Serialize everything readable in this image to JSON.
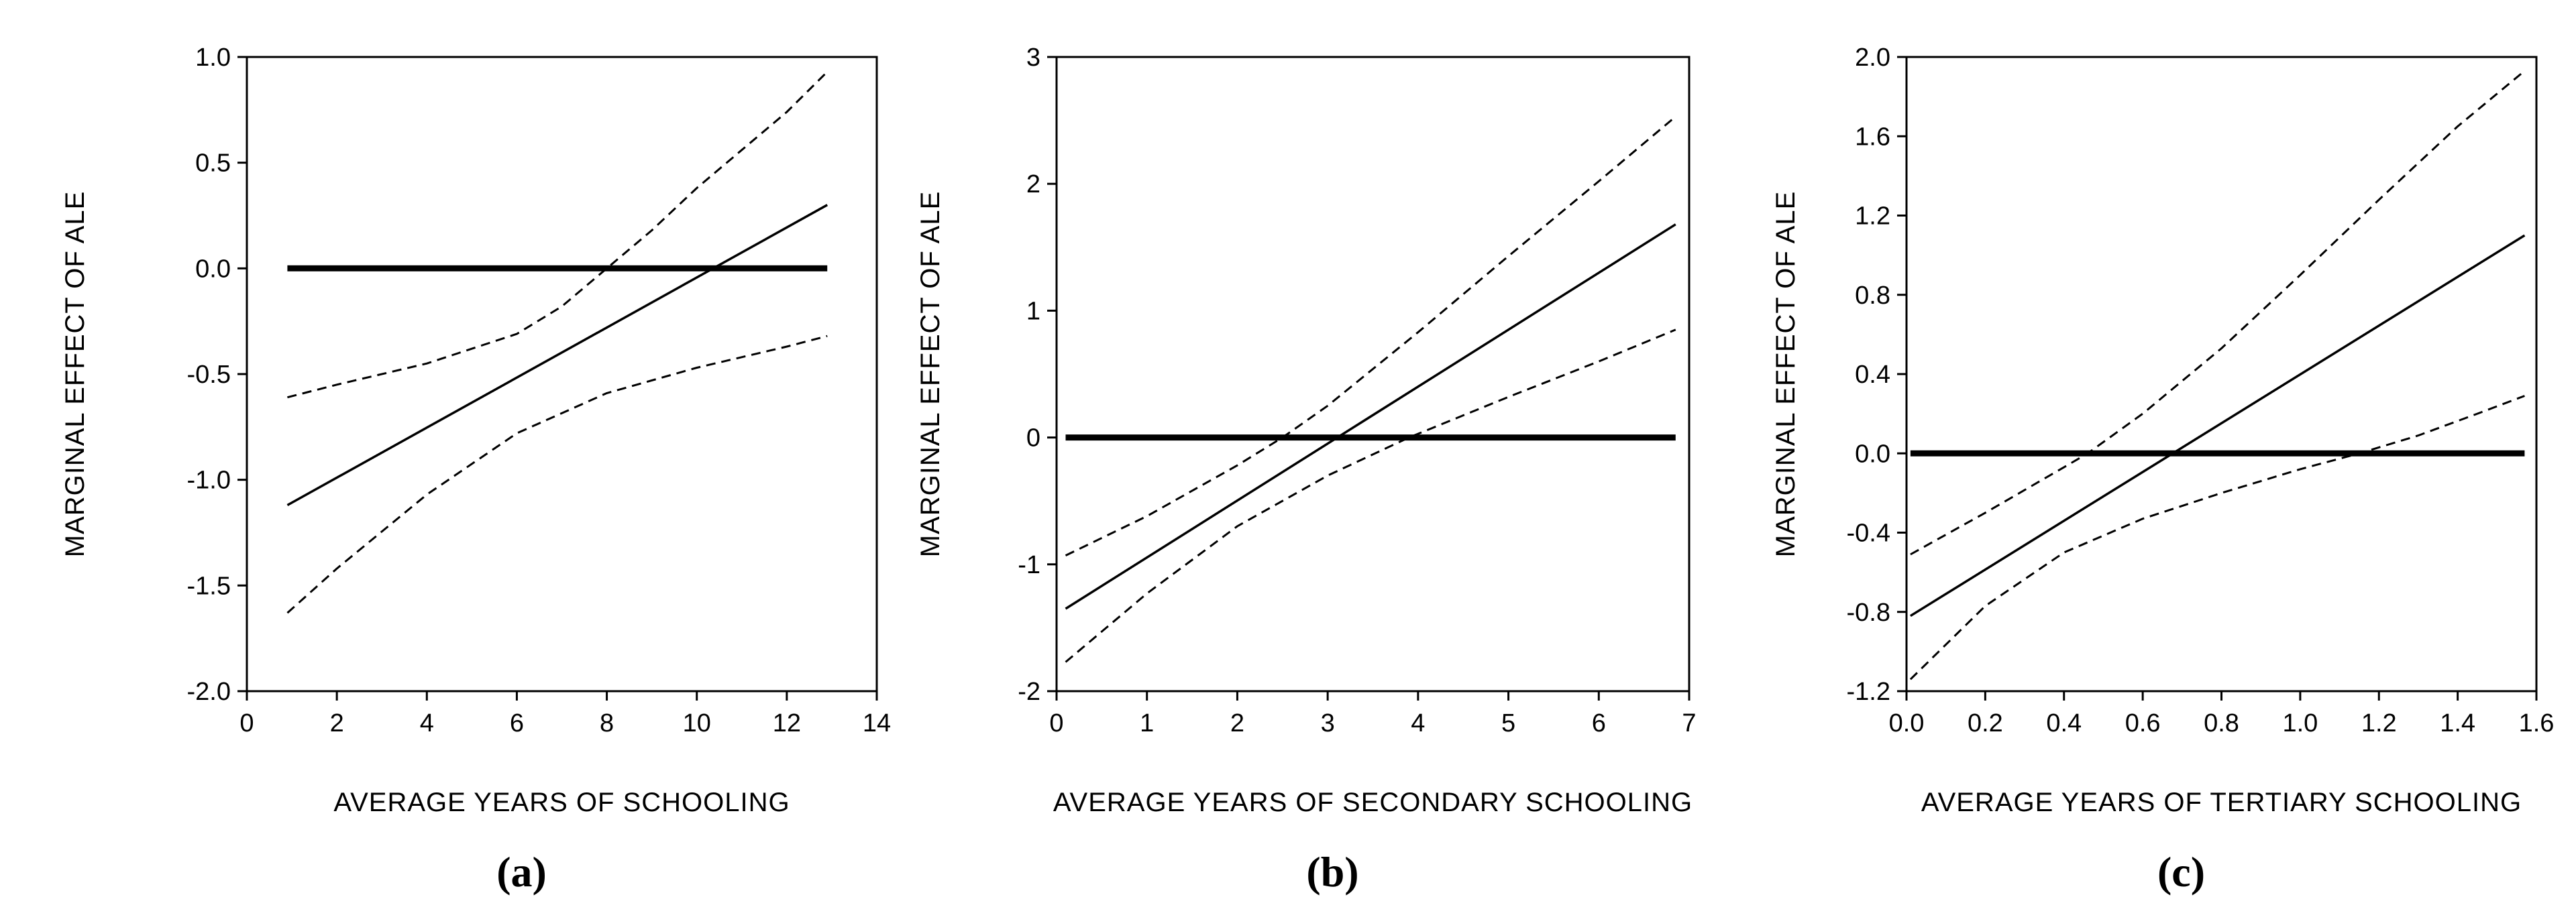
{
  "chart_data": [
    {
      "type": "line",
      "panel_label": "(a)",
      "xlabel": "AVERAGE YEARS OF SCHOOLING",
      "ylabel": "MARGINAL EFFECT OF ALE",
      "xlim": [
        0,
        14
      ],
      "ylim": [
        -2.0,
        1.0
      ],
      "xticks": [
        0,
        2,
        4,
        6,
        8,
        10,
        12,
        14
      ],
      "xtick_labels": [
        "0",
        "2",
        "4",
        "6",
        "8",
        "10",
        "12",
        "14"
      ],
      "yticks": [
        1.0,
        0.5,
        0.0,
        -0.5,
        -1.0,
        -1.5,
        -2.0
      ],
      "ytick_labels": [
        "1.0",
        "0.5",
        "0.0",
        "-0.5",
        "-1.0",
        "-1.5",
        "-2.0"
      ],
      "grid": false,
      "series": [
        {
          "name": "marginal effect",
          "style": "solid",
          "x": [
            0.9,
            12.9
          ],
          "y": [
            -1.12,
            0.3
          ]
        },
        {
          "name": "upper bound",
          "style": "dashed",
          "x": [
            0.9,
            2,
            4,
            6,
            7,
            8,
            9,
            10,
            11,
            12,
            12.9
          ],
          "y": [
            -0.61,
            -0.55,
            -0.45,
            -0.31,
            -0.18,
            0.0,
            0.18,
            0.38,
            0.56,
            0.74,
            0.93
          ]
        },
        {
          "name": "lower bound",
          "style": "dashed",
          "x": [
            0.9,
            2,
            4,
            6,
            8,
            10,
            12,
            12.9
          ],
          "y": [
            -1.63,
            -1.42,
            -1.07,
            -0.78,
            -0.59,
            -0.47,
            -0.37,
            -0.32
          ]
        },
        {
          "name": "zero line",
          "style": "bold",
          "x": [
            0.9,
            12.9
          ],
          "y": [
            0.0,
            0.0
          ]
        }
      ]
    },
    {
      "type": "line",
      "panel_label": "(b)",
      "xlabel": "AVERAGE YEARS OF SECONDARY SCHOOLING",
      "ylabel": "MARGINAL EFFECT OF ALE",
      "xlim": [
        0,
        7
      ],
      "ylim": [
        -2,
        3
      ],
      "xticks": [
        0,
        1,
        2,
        3,
        4,
        5,
        6,
        7
      ],
      "xtick_labels": [
        "0",
        "1",
        "2",
        "3",
        "4",
        "5",
        "6",
        "7"
      ],
      "yticks": [
        3,
        2,
        1,
        0,
        -1,
        -2
      ],
      "ytick_labels": [
        "3",
        "2",
        "1",
        "0",
        "-1",
        "-2"
      ],
      "grid": false,
      "series": [
        {
          "name": "marginal effect",
          "style": "solid",
          "x": [
            0.1,
            6.85
          ],
          "y": [
            -1.35,
            1.68
          ]
        },
        {
          "name": "upper bound",
          "style": "dashed",
          "x": [
            0.1,
            1,
            2,
            2.5,
            3,
            4,
            5,
            6,
            6.85
          ],
          "y": [
            -0.93,
            -0.62,
            -0.22,
            0.0,
            0.25,
            0.83,
            1.43,
            2.02,
            2.53
          ]
        },
        {
          "name": "lower bound",
          "style": "dashed",
          "x": [
            0.1,
            1,
            2,
            3,
            3.9,
            5,
            6,
            6.85
          ],
          "y": [
            -1.77,
            -1.23,
            -0.7,
            -0.3,
            0.0,
            0.32,
            0.6,
            0.85
          ]
        },
        {
          "name": "zero line",
          "style": "bold",
          "x": [
            0.1,
            6.85
          ],
          "y": [
            0.0,
            0.0
          ]
        }
      ]
    },
    {
      "type": "line",
      "panel_label": "(c)",
      "xlabel": "AVERAGE YEARS OF TERTIARY SCHOOLING",
      "ylabel": "MARGINAL EFFECT OF ALE",
      "xlim": [
        0.0,
        1.6
      ],
      "ylim": [
        -1.2,
        2.0
      ],
      "xticks": [
        0.0,
        0.2,
        0.4,
        0.6,
        0.8,
        1.0,
        1.2,
        1.4,
        1.6
      ],
      "xtick_labels": [
        "0.0",
        "0.2",
        "0.4",
        "0.6",
        "0.8",
        "1.0",
        "1.2",
        "1.4",
        "1.6"
      ],
      "yticks": [
        2.0,
        1.6,
        1.2,
        0.8,
        0.4,
        0.0,
        -0.4,
        -0.8,
        -1.2
      ],
      "ytick_labels": [
        "2.0",
        "1.6",
        "1.2",
        "0.8",
        "0.4",
        "0.0",
        "-0.4",
        "-0.8",
        "-1.2"
      ],
      "grid": false,
      "series": [
        {
          "name": "marginal effect",
          "style": "solid",
          "x": [
            0.01,
            1.57
          ],
          "y": [
            -0.82,
            1.1
          ]
        },
        {
          "name": "upper bound",
          "style": "dashed",
          "x": [
            0.01,
            0.2,
            0.4,
            0.46,
            0.6,
            0.8,
            1.0,
            1.2,
            1.4,
            1.57
          ],
          "y": [
            -0.51,
            -0.3,
            -0.07,
            0.0,
            0.2,
            0.53,
            0.9,
            1.28,
            1.65,
            1.93
          ]
        },
        {
          "name": "lower bound",
          "style": "dashed",
          "x": [
            0.01,
            0.2,
            0.4,
            0.6,
            0.8,
            1.0,
            1.15,
            1.3,
            1.45,
            1.57
          ],
          "y": [
            -1.14,
            -0.77,
            -0.5,
            -0.33,
            -0.2,
            -0.08,
            0.0,
            0.09,
            0.2,
            0.29
          ]
        },
        {
          "name": "zero line",
          "style": "bold",
          "x": [
            0.01,
            1.57
          ],
          "y": [
            0.0,
            0.0
          ]
        }
      ]
    }
  ]
}
